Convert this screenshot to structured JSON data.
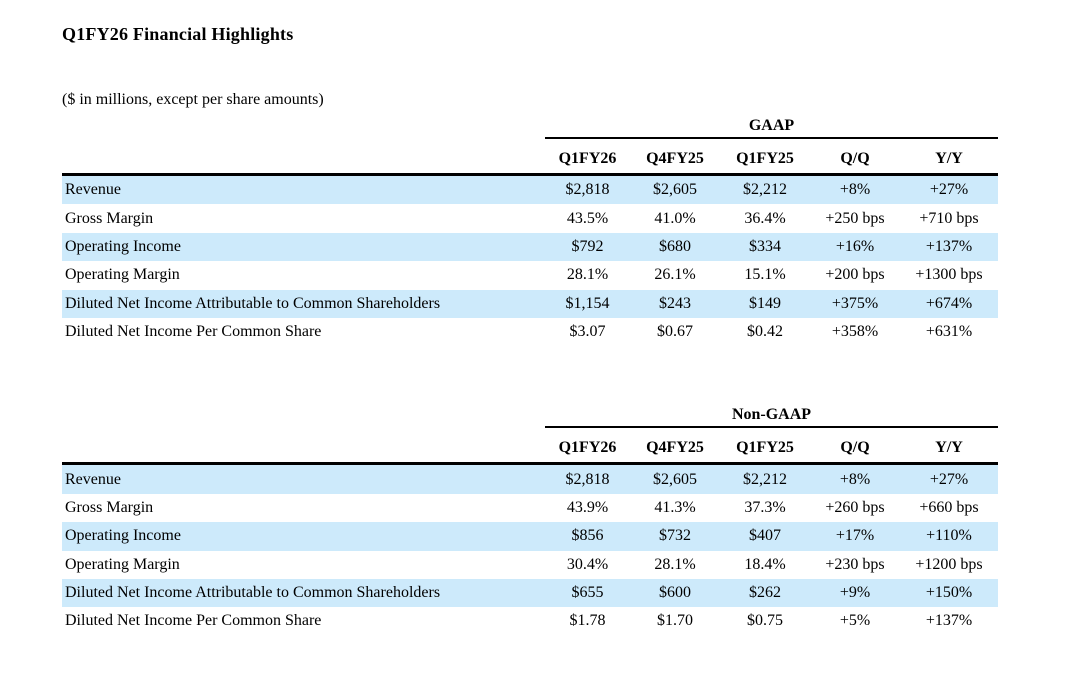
{
  "page": {
    "title": "Q1FY26 Financial Highlights",
    "subtitle": "($ in millions, except per share amounts)"
  },
  "columns": [
    "Q1FY26",
    "Q4FY25",
    "Q1FY25",
    "Q/Q",
    "Y/Y"
  ],
  "tables": [
    {
      "group": "GAAP",
      "rows": [
        {
          "label": "Revenue",
          "values": [
            "$2,818",
            "$2,605",
            "$2,212",
            "+8%",
            "+27%"
          ],
          "highlight": true
        },
        {
          "label": "Gross Margin",
          "values": [
            "43.5%",
            "41.0%",
            "36.4%",
            "+250 bps",
            "+710 bps"
          ],
          "highlight": false
        },
        {
          "label": "Operating Income",
          "values": [
            "$792",
            "$680",
            "$334",
            "+16%",
            "+137%"
          ],
          "highlight": true
        },
        {
          "label": "Operating Margin",
          "values": [
            "28.1%",
            "26.1%",
            "15.1%",
            "+200 bps",
            "+1300 bps"
          ],
          "highlight": false
        },
        {
          "label": "Diluted Net Income Attributable to Common Shareholders",
          "values": [
            "$1,154",
            "$243",
            "$149",
            "+375%",
            "+674%"
          ],
          "highlight": true
        },
        {
          "label": "Diluted Net Income Per Common Share",
          "values": [
            "$3.07",
            "$0.67",
            "$0.42",
            "+358%",
            "+631%"
          ],
          "highlight": false
        }
      ]
    },
    {
      "group": "Non-GAAP",
      "rows": [
        {
          "label": "Revenue",
          "values": [
            "$2,818",
            "$2,605",
            "$2,212",
            "+8%",
            "+27%"
          ],
          "highlight": true
        },
        {
          "label": "Gross Margin",
          "values": [
            "43.9%",
            "41.3%",
            "37.3%",
            "+260 bps",
            "+660 bps"
          ],
          "highlight": false
        },
        {
          "label": "Operating Income",
          "values": [
            "$856",
            "$732",
            "$407",
            "+17%",
            "+110%"
          ],
          "highlight": true
        },
        {
          "label": "Operating Margin",
          "values": [
            "30.4%",
            "28.1%",
            "18.4%",
            "+230 bps",
            "+1200 bps"
          ],
          "highlight": false
        },
        {
          "label": "Diluted Net Income Attributable to Common Shareholders",
          "values": [
            "$655",
            "$600",
            "$262",
            "+9%",
            "+150%"
          ],
          "highlight": true
        },
        {
          "label": "Diluted Net Income Per Common Share",
          "values": [
            "$1.78",
            "$1.70",
            "$0.75",
            "+5%",
            "+137%"
          ],
          "highlight": false
        }
      ]
    }
  ],
  "colors": {
    "row_highlight": "#cdeafb",
    "rule": "#000000",
    "text": "#000000",
    "background": "#ffffff"
  }
}
